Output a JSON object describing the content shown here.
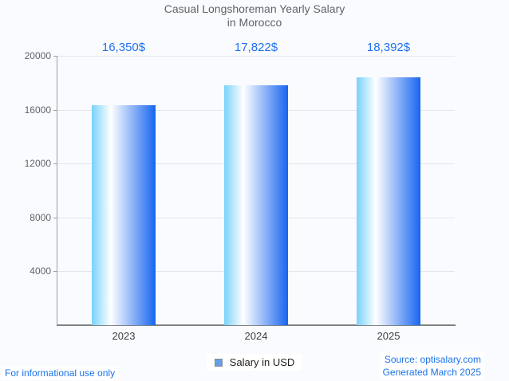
{
  "title": {
    "line1": "Casual Longshoreman Yearly Salary",
    "line2": "in Morocco"
  },
  "chart_data": {
    "type": "bar",
    "title": "Casual Longshoreman Yearly Salary in Morocco",
    "categories": [
      "2023",
      "2024",
      "2025"
    ],
    "series": [
      {
        "name": "Salary in USD",
        "values": [
          16350,
          17822,
          18392
        ]
      }
    ],
    "value_labels": [
      "16,350$",
      "17,822$",
      "18,392$"
    ],
    "xlabel": "",
    "ylabel": "",
    "ylim": [
      0,
      20000
    ],
    "yticks": [
      4000,
      8000,
      12000,
      16000,
      20000
    ],
    "grid": true,
    "legend_position": "bottom"
  },
  "legend": {
    "marker": "blue-square",
    "label": "Salary in USD"
  },
  "footer": {
    "disclaimer": "For informational use only",
    "source": "Source: optisalary.com",
    "generated": "Generated March 2025"
  },
  "colors": {
    "background": "#fafbfe",
    "title_text": "#5f6368",
    "axis_line": "#989da3",
    "axis_line_dark": "#7d8287",
    "gridline": "#e2e6ea",
    "tick_label": "#5f6368",
    "category_label": "#3c4043",
    "value_label": "#1f71f0",
    "bar_gradient_left": "#79d2fa",
    "bar_gradient_mid": "#ffffff",
    "bar_gradient_right": "#1765f0",
    "legend_marker_fill": "#64a0e8",
    "legend_marker_border": "#878d96",
    "footer_text": "#1a73e8"
  }
}
